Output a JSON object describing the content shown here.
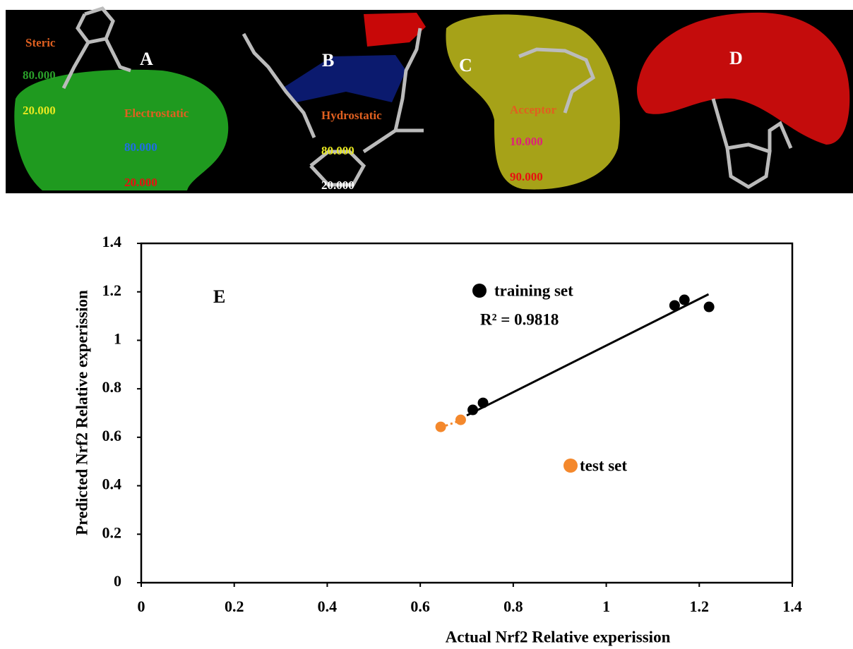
{
  "panels": {
    "A": {
      "letter": "A",
      "labels": [
        "Steric",
        "80.000",
        "20.000",
        "Electrostatic",
        "80.000",
        "20.000"
      ]
    },
    "B": {
      "letter": "B",
      "labels": [
        "Hydrostatic",
        "80.000",
        "20.000"
      ]
    },
    "C": {
      "letter": "C",
      "labels": [
        "Acceptor",
        "10.000",
        "90.000"
      ]
    },
    "D": {
      "letter": "D"
    }
  },
  "chart_data": {
    "type": "scatter",
    "x_label": "Actual Nrf2  Relative experission",
    "y_label": "Predicted Nrf2  Relative experission",
    "annotations": [
      "E",
      "R² = 0.9818"
    ],
    "xlim": [
      0,
      1.4
    ],
    "ylim": [
      0,
      1.4
    ],
    "xticks": [
      0,
      0.2,
      0.4,
      0.6,
      0.8,
      1,
      1.2,
      1.4
    ],
    "yticks": [
      0,
      0.2,
      0.4,
      0.6,
      0.8,
      1,
      1.2,
      1.4
    ],
    "grid": false,
    "series": [
      {
        "name": "training set",
        "color": "#000000",
        "x": [
          1.147,
          1.168,
          1.221,
          0.713,
          0.735
        ],
        "values": [
          1.144,
          1.167,
          1.138,
          0.713,
          0.742
        ],
        "trendline": {
          "x": [
            0.7,
            1.22
          ],
          "y": [
            0.69,
            1.19
          ]
        }
      },
      {
        "name": "test set",
        "color": "#f4882c",
        "x": [
          0.644,
          0.687
        ],
        "values": [
          0.643,
          0.672
        ],
        "trendline": {
          "x": [
            0.655,
            0.68
          ],
          "y": [
            0.648,
            0.665
          ]
        }
      }
    ]
  }
}
